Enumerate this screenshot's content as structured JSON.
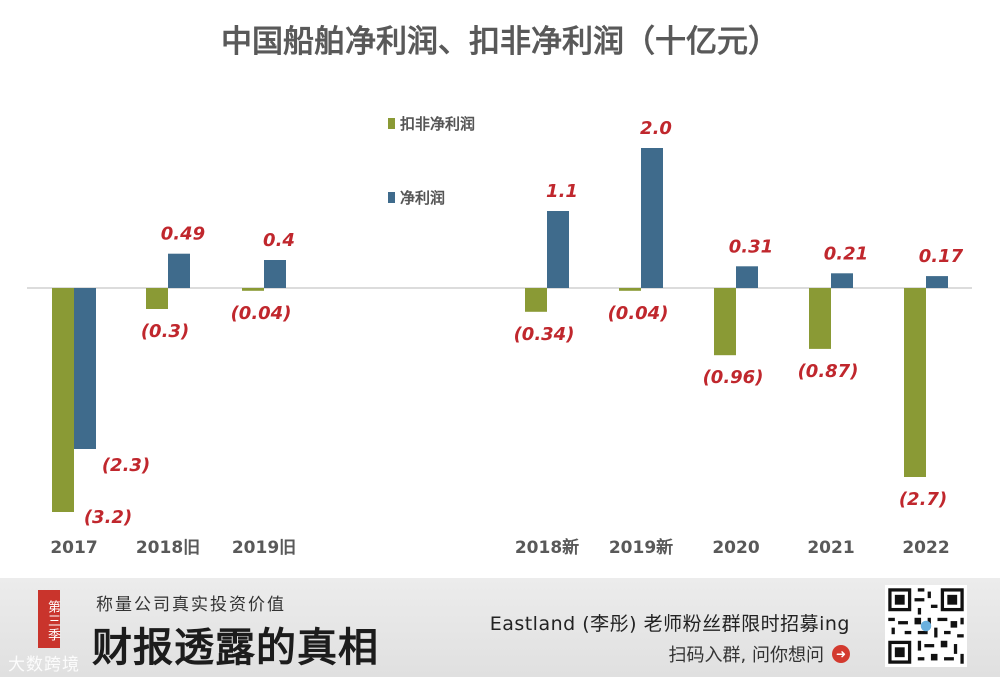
{
  "chart_data": {
    "type": "bar",
    "title": "中国船舶净利润、扣非净利润（十亿元）",
    "categories": [
      "2017",
      "2018旧",
      "2019旧",
      "2018新",
      "2019新",
      "2020",
      "2021",
      "2022"
    ],
    "series": [
      {
        "name": "扣非净利润",
        "color": "#8a9a35",
        "values": [
          -3.2,
          -0.3,
          -0.04,
          -0.34,
          -0.04,
          -0.96,
          -0.87,
          -2.7
        ],
        "labels": [
          "(3.2)",
          "(0.3)",
          "(0.04)",
          "(0.34)",
          "(0.04)",
          "(0.96)",
          "(0.87)",
          "(2.7)"
        ]
      },
      {
        "name": "净利润",
        "color": "#3f6b8c",
        "values": [
          -2.3,
          0.49,
          0.4,
          1.1,
          2.0,
          0.31,
          0.21,
          0.17
        ],
        "labels": [
          "(2.3)",
          "0.49",
          "0.4",
          "1.1",
          "2.0",
          "0.31",
          "0.21",
          "0.17"
        ]
      }
    ],
    "legend": [
      "扣非净利润",
      "净利润"
    ],
    "legend_position": "top-center",
    "ylim": [
      -3.3,
      2.1
    ],
    "grid": false,
    "label_color": "#c0272d"
  },
  "footer": {
    "season": "第三季",
    "subtitle": "称量公司真实投资价值",
    "title": "财报透露的真相",
    "watermark": "大数跨境",
    "promo": "Eastland (李彤) 老师粉丝群限时招募ing",
    "cta": "扫码入群, 问你想问"
  }
}
